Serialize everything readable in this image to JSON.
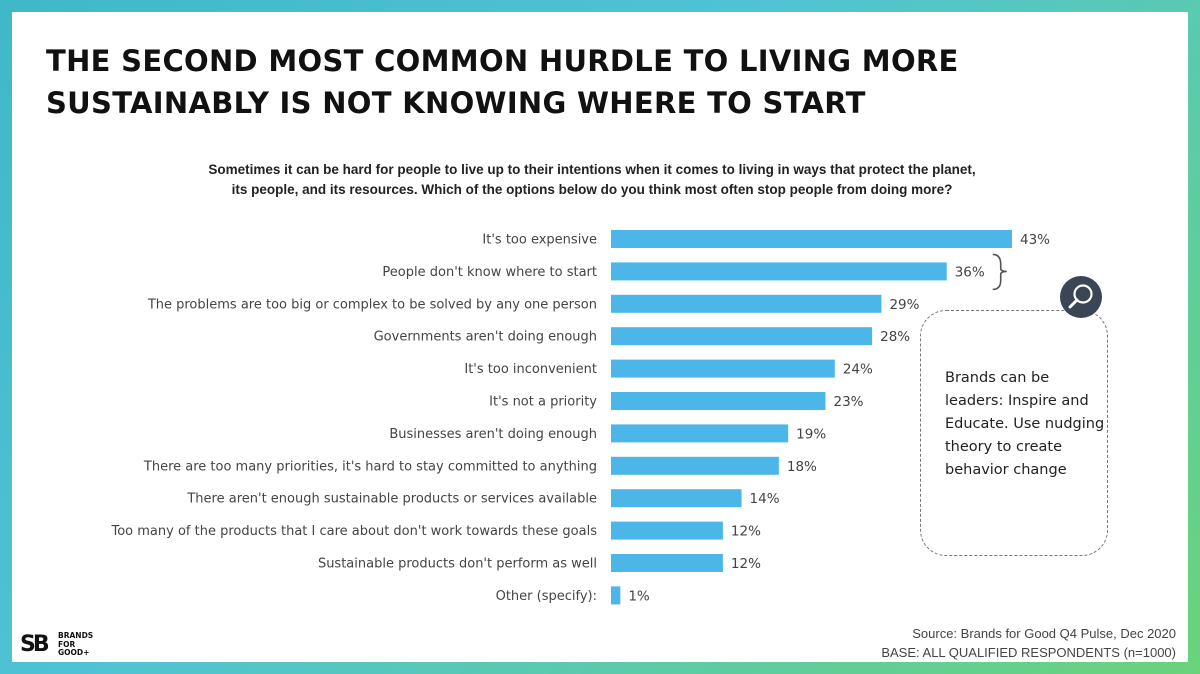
{
  "headline": {
    "line1": "THE SECOND MOST COMMON HURDLE TO LIVING MORE",
    "line2": "SUSTAINABLY IS NOT KNOWING WHERE TO START"
  },
  "question": {
    "line1": "Sometimes it can be hard for people to live up to their intentions when it comes to living in ways that protect the planet,",
    "line2": "its people, and its resources. Which of the options below do you think most often stop people from doing more?"
  },
  "chart_data": {
    "type": "bar",
    "orientation": "horizontal",
    "categories": [
      "It's too expensive",
      "People don't know where to start",
      "The problems are too big or complex to be solved by any one person",
      "Governments aren't doing enough",
      "It's too inconvenient",
      "It's not a priority",
      "Businesses aren't doing enough",
      "There are too many priorities, it's hard to stay committed to anything",
      "There aren't enough sustainable products or services available",
      "Too many of the products that I care about don't work towards these goals",
      "Sustainable products don't perform as well",
      "Other (specify):"
    ],
    "values": [
      43,
      36,
      29,
      28,
      24,
      23,
      19,
      18,
      14,
      12,
      12,
      1
    ],
    "value_labels": [
      "43%",
      "36%",
      "29%",
      "28%",
      "24%",
      "23%",
      "19%",
      "18%",
      "14%",
      "12%",
      "12%",
      "1%"
    ],
    "unit": "%",
    "xlim": [
      0,
      43
    ],
    "color": "#4db6e8",
    "highlight_index": 1
  },
  "callout": {
    "text": "Brands can be leaders: Inspire and Educate. Use nudging theory to create behavior change",
    "icon": "search-icon"
  },
  "logo": {
    "mark": "SB",
    "line1": "BRANDS",
    "line2": "FOR",
    "line3": "GOOD+"
  },
  "source": {
    "line1": "Source: Brands for Good Q4 Pulse, Dec 2020",
    "line2": "BASE: ALL QUALIFIED RESPONDENTS (n=1000)"
  }
}
